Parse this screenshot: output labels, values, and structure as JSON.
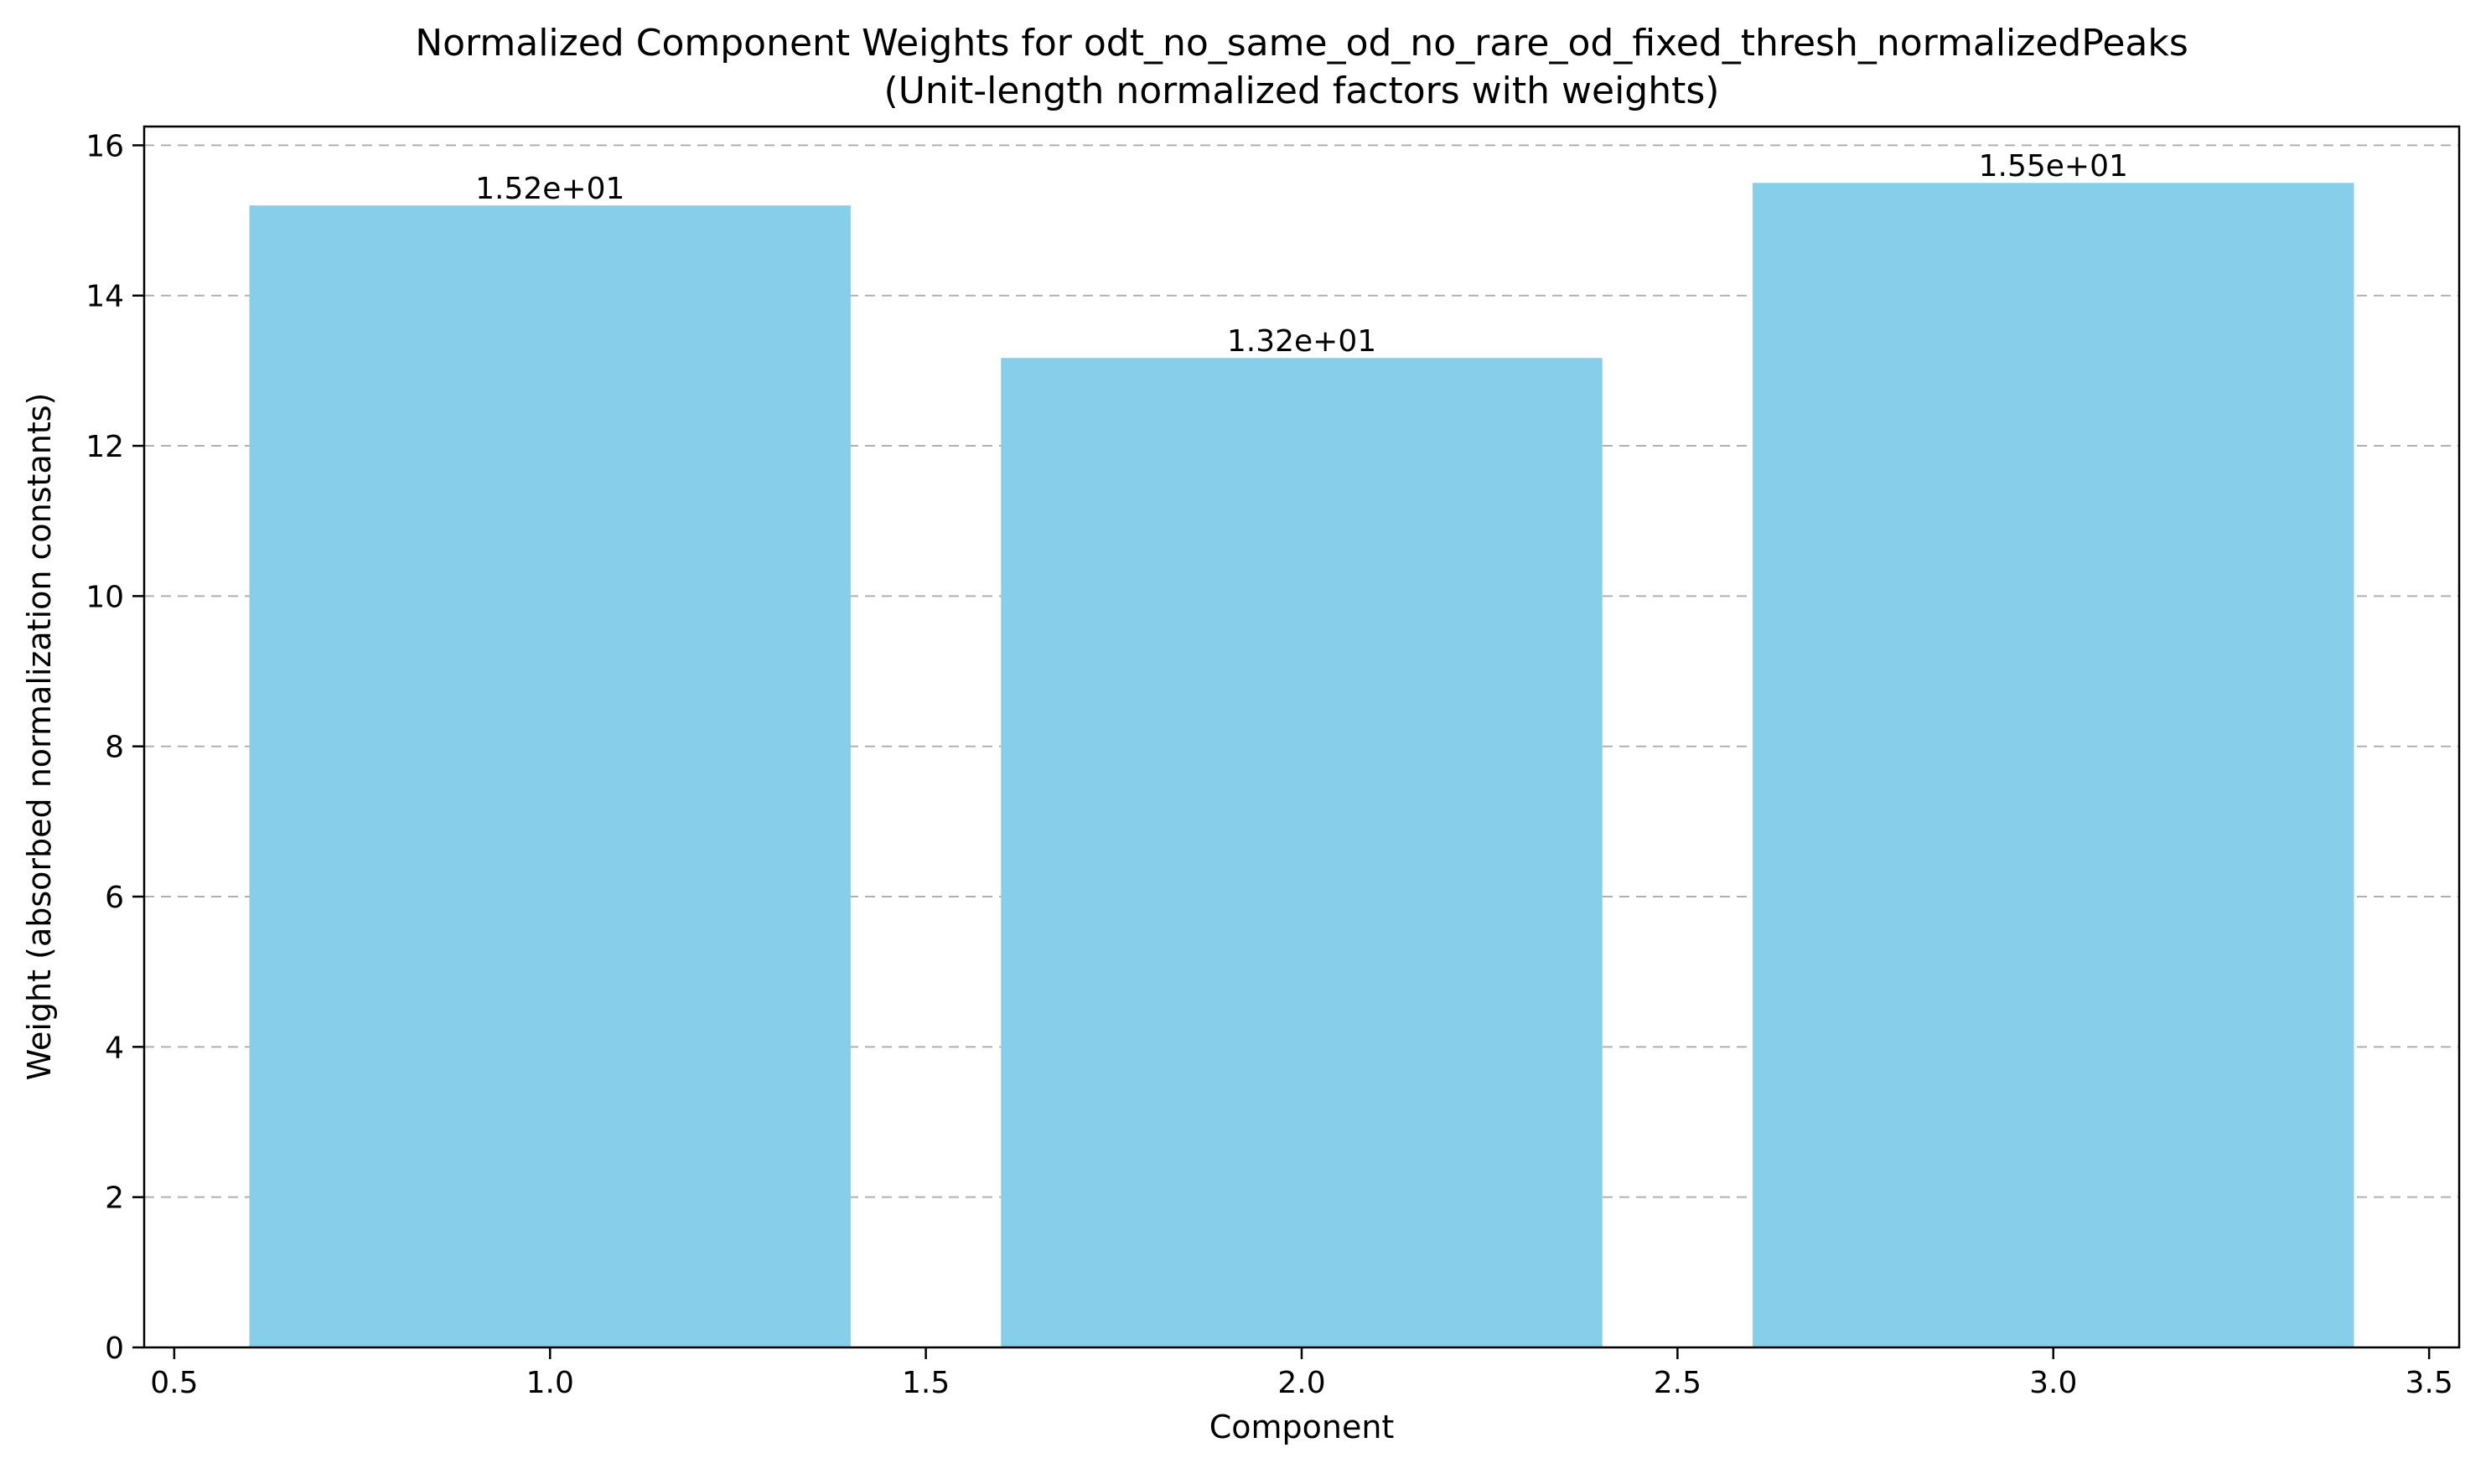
{
  "chart_data": {
    "type": "bar",
    "title": "Normalized Component Weights for odt_no_same_od_no_rare_od_fixed_thresh_normalizedPeaks",
    "subtitle": "(Unit-length normalized factors with weights)",
    "xlabel": "Component",
    "ylabel": "Weight (absorbed normalization constants)",
    "x": [
      1,
      2,
      3
    ],
    "values": [
      15.2,
      13.17,
      15.5
    ],
    "value_labels": [
      "1.52e+01",
      "1.32e+01",
      "1.55e+01"
    ],
    "bar_width": 0.8,
    "xlim": [
      0.46,
      3.54
    ],
    "ylim": [
      0,
      16.25
    ],
    "x_ticks": [
      0.5,
      1.0,
      1.5,
      2.0,
      2.5,
      3.0,
      3.5
    ],
    "x_tick_labels": [
      "0.5",
      "1.0",
      "1.5",
      "2.0",
      "2.5",
      "3.0",
      "3.5"
    ],
    "y_ticks": [
      0,
      2,
      4,
      6,
      8,
      10,
      12,
      14,
      16
    ],
    "y_tick_labels": [
      "0",
      "2",
      "4",
      "6",
      "8",
      "10",
      "12",
      "14",
      "16"
    ],
    "grid": "y-dashed",
    "colors": {
      "bar": "#87CEEB",
      "grid": "#b0b0b0",
      "axis": "#000000"
    }
  }
}
